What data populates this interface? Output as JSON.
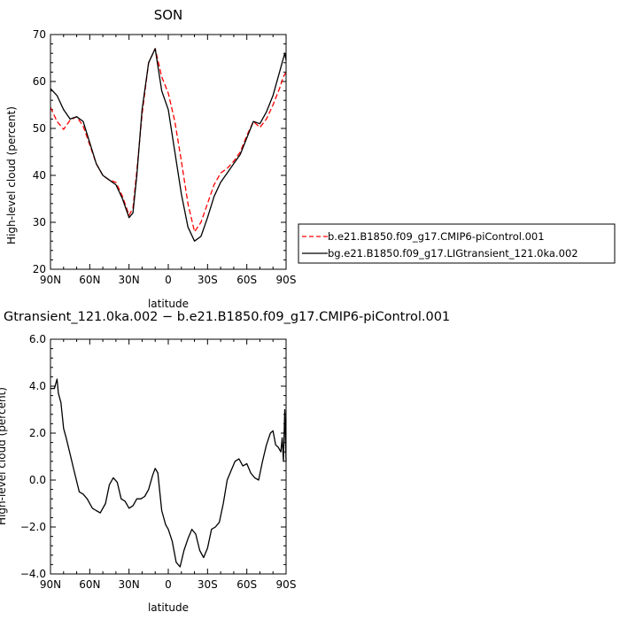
{
  "chart_data": [
    {
      "type": "line",
      "title": "SON",
      "xlabel": "latitude",
      "ylabel": "High-level cloud (percent)",
      "xticks": [
        "90N",
        "60N",
        "30N",
        "0",
        "30S",
        "60S",
        "90S"
      ],
      "yticks": [
        "20",
        "30",
        "40",
        "50",
        "60",
        "70"
      ],
      "xlim": [
        90,
        -90
      ],
      "ylim": [
        20,
        70
      ],
      "legend": "right",
      "series": [
        {
          "name": "b.e21.B1850.f09_g17.CMIP6-piControl.001",
          "color": "#ff0000",
          "dash": "dashed",
          "x": [
            90,
            85,
            80,
            75,
            70,
            65,
            60,
            55,
            50,
            45,
            40,
            35,
            30,
            27,
            24,
            20,
            15,
            10,
            5,
            0,
            -5,
            -10,
            -15,
            -20,
            -25,
            -30,
            -35,
            -40,
            -45,
            -50,
            -55,
            -60,
            -65,
            -70,
            -75,
            -80,
            -85,
            -88,
            -90
          ],
          "y": [
            54.5,
            51.5,
            49.8,
            51.8,
            52.5,
            50.5,
            46.5,
            42.5,
            40,
            39,
            38.5,
            35.5,
            31.5,
            33,
            41,
            53,
            64,
            67,
            61,
            57.5,
            51.5,
            43,
            34,
            28,
            30,
            34,
            38,
            40.5,
            41.5,
            43,
            45,
            48.5,
            51.5,
            50.2,
            52,
            55,
            58.5,
            61,
            62
          ]
        },
        {
          "name": "bg.e21.B1850.f09_g17.LIGtransient_121.0ka.002",
          "color": "#000000",
          "dash": "solid",
          "x": [
            90,
            85,
            80,
            75,
            70,
            65,
            60,
            55,
            50,
            45,
            40,
            35,
            30,
            27,
            24,
            20,
            15,
            10,
            5,
            0,
            -5,
            -10,
            -15,
            -20,
            -25,
            -30,
            -35,
            -40,
            -45,
            -50,
            -55,
            -60,
            -65,
            -70,
            -75,
            -80,
            -85,
            -88,
            -89,
            -90
          ],
          "y": [
            58.5,
            57,
            54,
            52,
            52.5,
            51.5,
            47,
            42.5,
            40,
            39,
            38,
            35,
            31,
            32,
            40,
            54,
            64,
            67,
            58,
            54,
            45,
            36,
            29,
            26,
            27,
            31,
            35.5,
            38.5,
            40.5,
            42.5,
            44.5,
            48,
            51.5,
            51,
            53.5,
            57,
            62,
            65,
            66,
            64.5
          ]
        }
      ]
    },
    {
      "type": "line",
      "title": "Gtransient_121.0ka.002 − b.e21.B1850.f09_g17.CMIP6-piControl.001",
      "xlabel": "latitude",
      "ylabel": "High-level cloud (percent)",
      "xticks": [
        "90N",
        "60N",
        "30N",
        "0",
        "30S",
        "60S",
        "90S"
      ],
      "yticks": [
        "−4.0",
        "−2.0",
        "0.0",
        "2.0",
        "4.0",
        "6.0"
      ],
      "xlim": [
        90,
        -90
      ],
      "ylim": [
        -4,
        6
      ],
      "series": [
        {
          "color": "#000000",
          "x": [
            90,
            87,
            85,
            84,
            82,
            80,
            78,
            75,
            72,
            68,
            65,
            62,
            58,
            55,
            52,
            48,
            45,
            42,
            39,
            36,
            33,
            30,
            27,
            24,
            21,
            18,
            15,
            12,
            10,
            8,
            5,
            2,
            0,
            -3,
            -6,
            -9,
            -12,
            -15,
            -18,
            -21,
            -24,
            -27,
            -30,
            -33,
            -36,
            -39,
            -42,
            -45,
            -48,
            -51,
            -54,
            -57,
            -60,
            -63,
            -66,
            -69,
            -72,
            -75,
            -78,
            -80,
            -82,
            -84,
            -86,
            -87,
            -88,
            -89,
            -90
          ],
          "y": [
            3.9,
            3.9,
            4.3,
            3.7,
            3.3,
            2.2,
            1.8,
            1.1,
            0.4,
            -0.5,
            -0.6,
            -0.8,
            -1.2,
            -1.3,
            -1.4,
            -1.0,
            -0.2,
            0.1,
            -0.1,
            -0.8,
            -0.9,
            -1.2,
            -1.1,
            -0.8,
            -0.8,
            -0.7,
            -0.4,
            0.2,
            0.5,
            0.3,
            -1.3,
            -1.9,
            -2.1,
            -2.6,
            -3.5,
            -3.7,
            -3.0,
            -2.5,
            -2.1,
            -2.3,
            -3.0,
            -3.3,
            -2.9,
            -2.1,
            -2.0,
            -1.8,
            -1.0,
            0.0,
            0.4,
            0.8,
            0.9,
            0.6,
            0.7,
            0.3,
            0.1,
            0.0,
            0.8,
            1.5,
            2.0,
            2.1,
            1.5,
            1.4,
            1.2,
            1.8,
            0.8,
            3.0,
            0.8
          ]
        }
      ]
    }
  ]
}
